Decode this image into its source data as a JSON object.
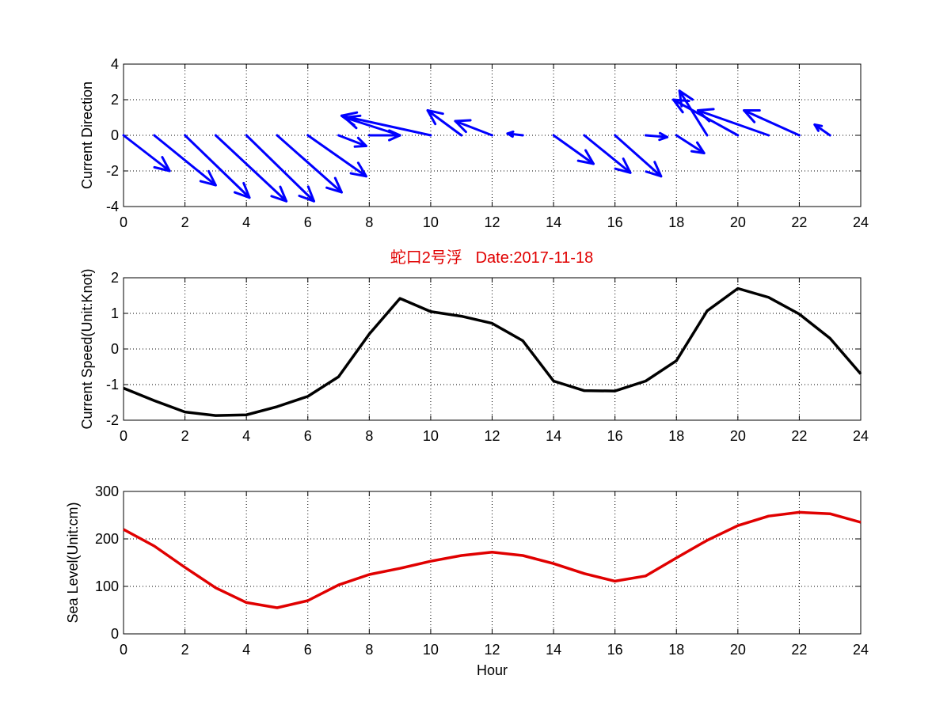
{
  "title": "蛇口2号浮   Date:2017-11-18",
  "colors": {
    "title": "#e00000",
    "direction": "#0000ff",
    "speed": "#000000",
    "level": "#e00000"
  },
  "chart_data": [
    {
      "type": "quiver",
      "ylabel": "Current Direction",
      "xlim": [
        0,
        24
      ],
      "ylim": [
        -4,
        4
      ],
      "xticks": [
        0,
        2,
        4,
        6,
        8,
        10,
        12,
        14,
        16,
        18,
        20,
        22,
        24
      ],
      "yticks": [
        -4,
        -2,
        0,
        2,
        4
      ],
      "grid": true,
      "vectors": [
        {
          "x": 0,
          "u": 1.5,
          "v": -2.0
        },
        {
          "x": 1,
          "u": 2.0,
          "v": -2.8
        },
        {
          "x": 2,
          "u": 2.1,
          "v": -3.5
        },
        {
          "x": 3,
          "u": 2.3,
          "v": -3.7
        },
        {
          "x": 4,
          "u": 2.2,
          "v": -3.7
        },
        {
          "x": 5,
          "u": 2.1,
          "v": -3.2
        },
        {
          "x": 6,
          "u": 1.9,
          "v": -2.3
        },
        {
          "x": 7,
          "u": 0.9,
          "v": -0.6
        },
        {
          "x": 8,
          "u": 1.0,
          "v": 0.0
        },
        {
          "x": 9,
          "u": -1.8,
          "v": 1.0
        },
        {
          "x": 10,
          "u": -2.9,
          "v": 1.1
        },
        {
          "x": 11,
          "u": -1.1,
          "v": 1.4
        },
        {
          "x": 12,
          "u": -1.2,
          "v": 0.8
        },
        {
          "x": 13,
          "u": -0.5,
          "v": 0.1
        },
        {
          "x": 14,
          "u": 1.3,
          "v": -1.6
        },
        {
          "x": 15,
          "u": 1.5,
          "v": -2.1
        },
        {
          "x": 16,
          "u": 1.5,
          "v": -2.3
        },
        {
          "x": 17,
          "u": 0.7,
          "v": -0.1
        },
        {
          "x": 18,
          "u": 0.9,
          "v": -1.0
        },
        {
          "x": 19,
          "u": -0.9,
          "v": 2.5
        },
        {
          "x": 20,
          "u": -2.1,
          "v": 2.0
        },
        {
          "x": 21,
          "u": -2.3,
          "v": 1.4
        },
        {
          "x": 22,
          "u": -1.8,
          "v": 1.4
        },
        {
          "x": 23,
          "u": -0.5,
          "v": 0.6
        }
      ]
    },
    {
      "type": "line",
      "ylabel": "Current Speed(Unit:Knot)",
      "xlim": [
        0,
        24
      ],
      "ylim": [
        -2,
        2
      ],
      "xticks": [
        0,
        2,
        4,
        6,
        8,
        10,
        12,
        14,
        16,
        18,
        20,
        22,
        24
      ],
      "yticks": [
        -2,
        -1,
        0,
        1,
        2
      ],
      "grid": true,
      "x": [
        0,
        1,
        2,
        3,
        4,
        5,
        6,
        7,
        8,
        9,
        10,
        11,
        12,
        13,
        14,
        15,
        16,
        17,
        18,
        19,
        20,
        21,
        22,
        23,
        24
      ],
      "y": [
        -1.1,
        -1.45,
        -1.77,
        -1.87,
        -1.85,
        -1.62,
        -1.33,
        -0.78,
        0.42,
        1.42,
        1.05,
        0.92,
        0.72,
        0.23,
        -0.9,
        -1.17,
        -1.18,
        -0.9,
        -0.33,
        1.07,
        1.7,
        1.45,
        0.98,
        0.3,
        -0.7
      ]
    },
    {
      "type": "line",
      "ylabel": "Sea Level(Unit:cm)",
      "xlabel": "Hour",
      "xlim": [
        0,
        24
      ],
      "ylim": [
        0,
        300
      ],
      "xticks": [
        0,
        2,
        4,
        6,
        8,
        10,
        12,
        14,
        16,
        18,
        20,
        22,
        24
      ],
      "yticks": [
        0,
        100,
        200,
        300
      ],
      "grid": true,
      "x": [
        0,
        1,
        2,
        3,
        4,
        5,
        6,
        7,
        8,
        9,
        10,
        11,
        12,
        13,
        14,
        15,
        16,
        17,
        18,
        19,
        20,
        21,
        22,
        23,
        24
      ],
      "y": [
        220,
        185,
        140,
        97,
        66,
        55,
        70,
        103,
        125,
        138,
        153,
        165,
        172,
        165,
        148,
        127,
        111,
        122,
        160,
        197,
        228,
        248,
        256,
        253,
        235
      ]
    }
  ]
}
